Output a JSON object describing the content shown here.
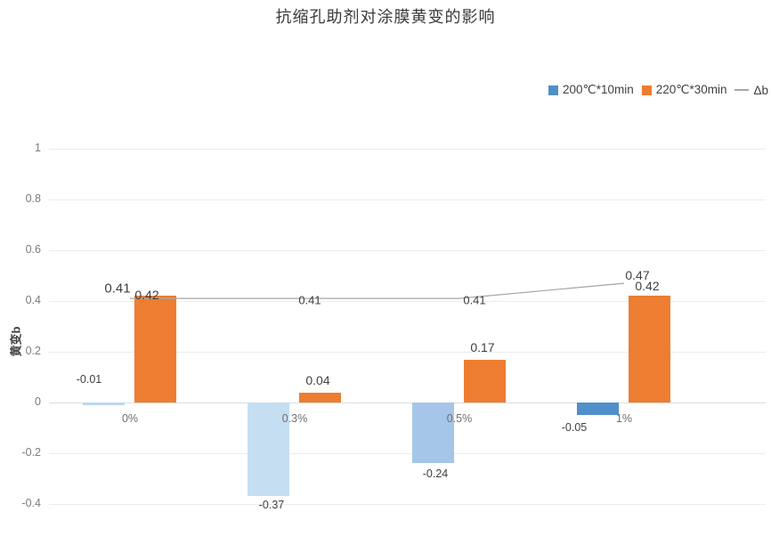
{
  "title": "抗缩孔助剂对涂膜黄变的影响",
  "legend": [
    {
      "label": "200℃*10min",
      "color": "#4f8fca",
      "type": "square"
    },
    {
      "label": "220℃*30min",
      "color": "#ed7d31",
      "type": "square"
    },
    {
      "label": "Δb",
      "color": "#a6a6a6",
      "type": "line"
    }
  ],
  "y_axis": {
    "label": "黄变b",
    "ticks": [
      "1",
      "0.8",
      "0.6",
      "0.4",
      "0.2",
      "0",
      "-0.2",
      "-0.4"
    ]
  },
  "chart_data": {
    "type": "bar",
    "subtype": "clustered-column-with-line",
    "title": "抗缩孔助剂对涂膜黄变的影响",
    "xlabel": "",
    "ylabel": "黄变b",
    "ylim": [
      -0.4,
      1
    ],
    "grid": true,
    "legend_position": "top-right",
    "categories": [
      "0%",
      "0.3%",
      "0.5%",
      "1%"
    ],
    "series": [
      {
        "name": "200℃*10min",
        "type": "bar",
        "values": [
          -0.01,
          -0.37,
          -0.24,
          -0.05
        ],
        "point_colors": [
          "#bdd7ee",
          "#c6def2",
          "#a5c6e8",
          "#4f8fca"
        ]
      },
      {
        "name": "220℃*30min",
        "type": "bar",
        "values": [
          0.42,
          0.04,
          0.17,
          0.42
        ],
        "color": "#ed7d31"
      },
      {
        "name": "Δb",
        "type": "line",
        "values": [
          0.41,
          0.41,
          0.41,
          0.47
        ],
        "color": "#a6a6a6"
      }
    ]
  },
  "colors": {
    "grid": "#ececec",
    "zero_line": "#dcdcdc",
    "tick_text": "#7c7c7c",
    "label_text": "#404040"
  }
}
